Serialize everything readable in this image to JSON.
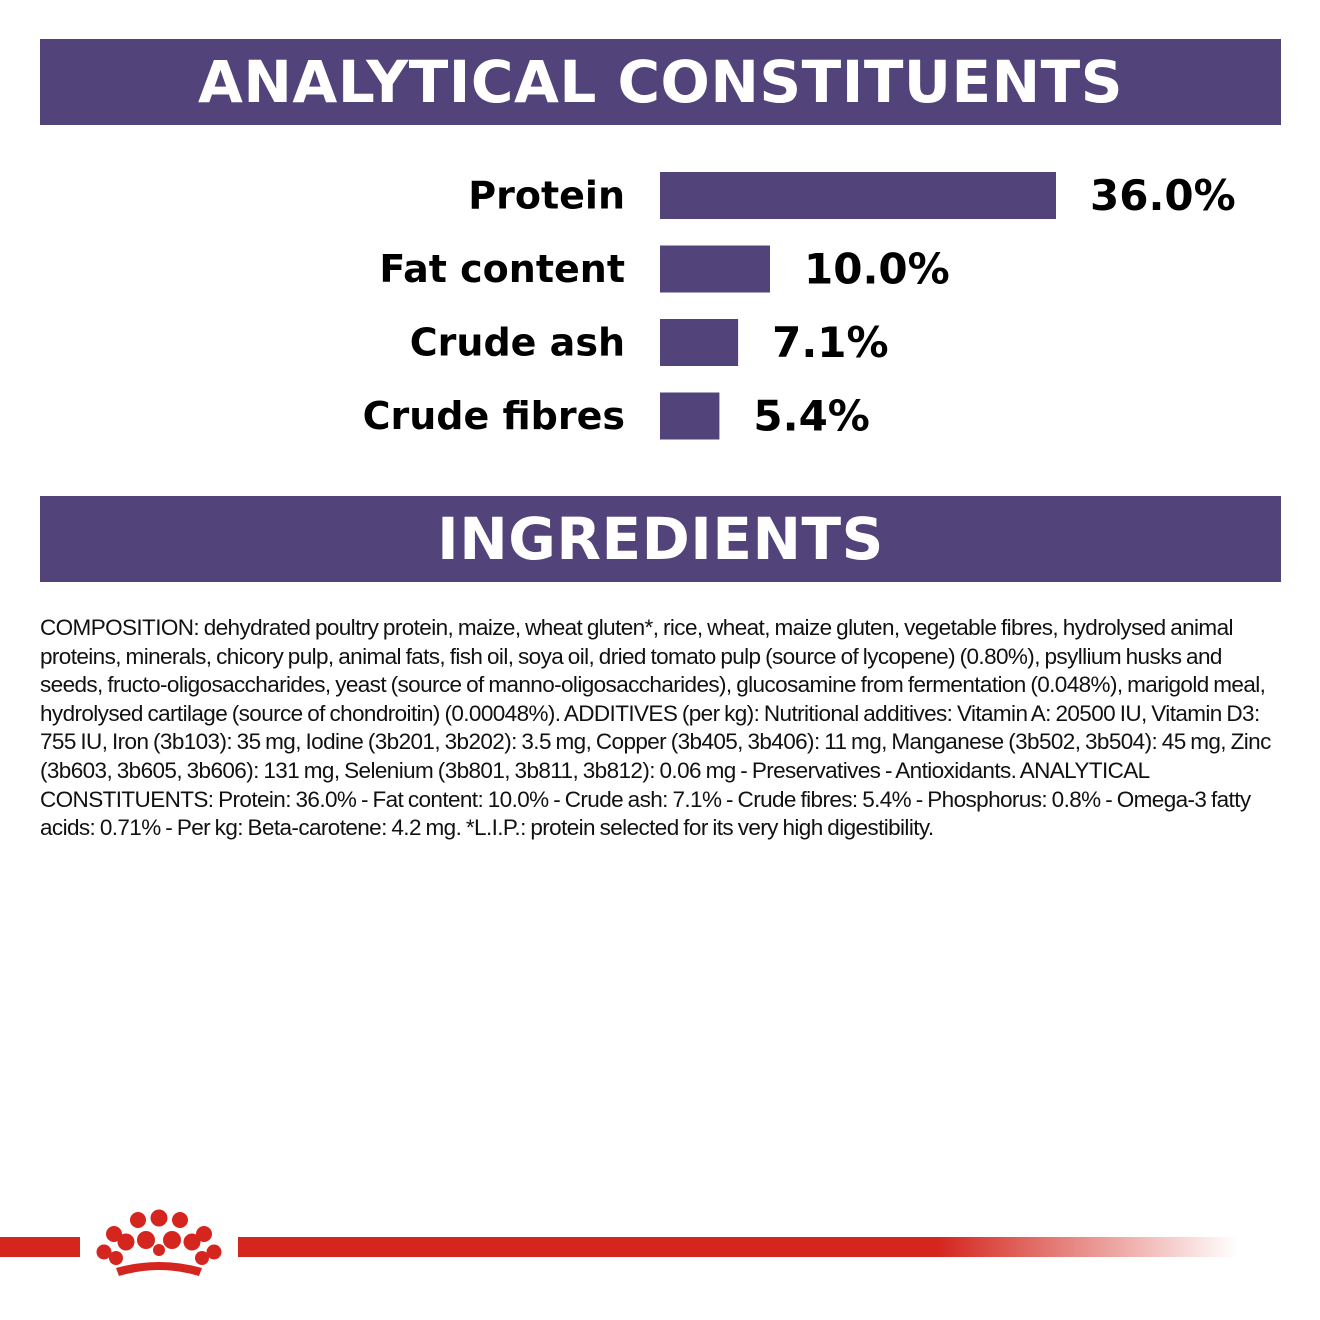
{
  "banners": {
    "analytical_title": "ANALYTICAL CONSTITUENTS",
    "ingredients_title": "INGREDIENTS"
  },
  "chart_data": {
    "type": "bar",
    "orientation": "horizontal",
    "categories": [
      "Protein",
      "Fat content",
      "Crude ash",
      "Crude fibres"
    ],
    "values": [
      36.0,
      10.0,
      7.1,
      5.4
    ],
    "value_labels": [
      "36.0%",
      "10.0%",
      "7.1%",
      "5.4%"
    ],
    "unit": "%",
    "xlim": [
      0,
      36
    ],
    "grid": false,
    "bar_color": "#52437a"
  },
  "ingredients": {
    "composition": "COMPOSITION: dehydrated poultry protein, maize, wheat gluten*, rice, wheat, maize gluten, vegetable fibres, hydrolysed animal proteins, minerals, chicory pulp, animal fats, fish oil, soya oil, dried tomato pulp (source of lycopene) (0.80%), psyllium husks and seeds, fructo-oligosaccharides, yeast (source of manno-oligosaccharides), glucosamine from fermentation (0.048%), marigold meal, hydrolysed cartilage (source of chondroitin) (0.00048%). ADDITIVES (per kg): Nutritional additives: Vitamin A: 20500 IU, Vitamin D3: 755 IU, Iron (3b103): 35 mg, Iodine (3b201, 3b202): 3.5 mg, Copper (3b405, 3b406): 11 mg, Manganese (3b502, 3b504): 45 mg, Zinc (3b603, 3b605, 3b606): 131 mg, Selenium (3b801, 3b811, 3b812): 0.06 mg - Preservatives - Antioxidants. ANALYTICAL CONSTITUENTS: Protein: 36.0% - Fat content: 10.0% - Crude ash: 7.1% - Crude fibres: 5.4% - Phosphorus: 0.8% - Omega-3 fatty acids: 0.71% - Per kg: Beta-carotene: 4.2 mg. *L.I.P.: protein selected for its very high digestibility."
  },
  "colors": {
    "banner": "#52437a",
    "brand_red": "#d4261e"
  },
  "icons": {
    "logo": "royal-canin-crown-icon"
  }
}
